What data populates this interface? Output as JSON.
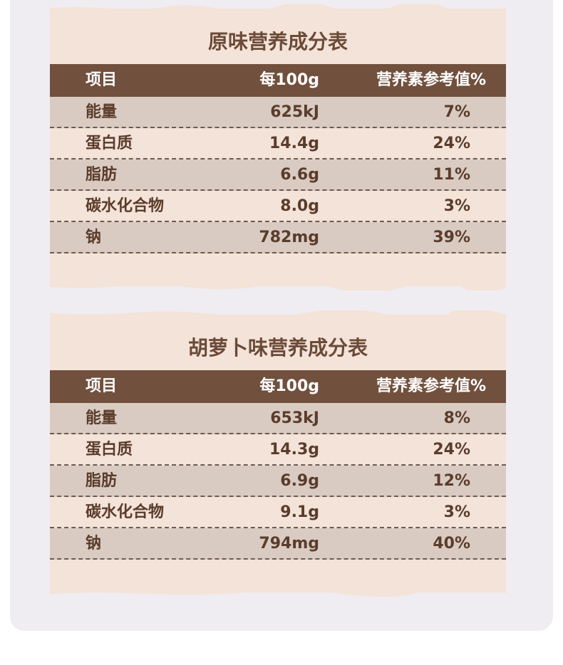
{
  "tables": [
    {
      "title": "原味营养成分表",
      "headers": {
        "item": "项目",
        "per100g": "每100g",
        "nrv": "营养素参考值%"
      },
      "rows": [
        {
          "item": "能量",
          "per100g": "625kJ",
          "nrv": "7%"
        },
        {
          "item": "蛋白质",
          "per100g": "14.4g",
          "nrv": "24%"
        },
        {
          "item": "脂肪",
          "per100g": "6.6g",
          "nrv": "11%"
        },
        {
          "item": "碳水化合物",
          "per100g": "8.0g",
          "nrv": "3%"
        },
        {
          "item": "钠",
          "per100g": "782mg",
          "nrv": "39%"
        }
      ]
    },
    {
      "title": "胡萝卜味营养成分表",
      "headers": {
        "item": "项目",
        "per100g": "每100g",
        "nrv": "营养素参考值%"
      },
      "rows": [
        {
          "item": "能量",
          "per100g": "653kJ",
          "nrv": "8%"
        },
        {
          "item": "蛋白质",
          "per100g": "14.3g",
          "nrv": "24%"
        },
        {
          "item": "脂肪",
          "per100g": "6.9g",
          "nrv": "12%"
        },
        {
          "item": "碳水化合物",
          "per100g": "9.1g",
          "nrv": "3%"
        },
        {
          "item": "钠",
          "per100g": "794mg",
          "nrv": "40%"
        }
      ]
    }
  ],
  "colors": {
    "page_background": "#efedf2",
    "card_background": "#f3e3d8",
    "header_background": "#71503d",
    "stripe_background": "#d9cbc1",
    "text": "#5b3c2c",
    "title": "#6b4a38"
  }
}
